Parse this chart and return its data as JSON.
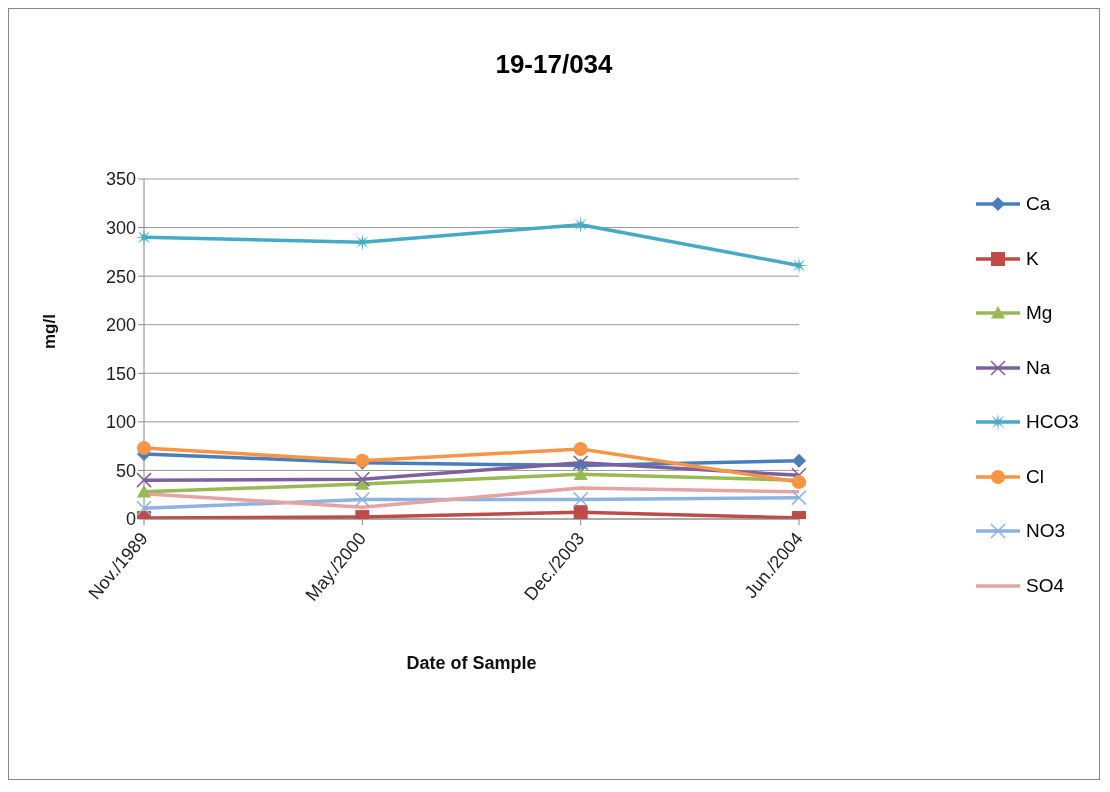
{
  "chart_data": {
    "type": "line",
    "title": "19-17/034",
    "xlabel": "Date of Sample",
    "ylabel": "mg/l",
    "categories": [
      "Nov./1989",
      "May./2000",
      "Dec./2003",
      "Jun./2004"
    ],
    "series": [
      {
        "name": "Ca",
        "color": "#4a7ebb",
        "marker": "diamond",
        "values": [
          67,
          58,
          55,
          60
        ]
      },
      {
        "name": "K",
        "color": "#be4b48",
        "marker": "square",
        "values": [
          1,
          2,
          7,
          1
        ]
      },
      {
        "name": "Mg",
        "color": "#98b954",
        "marker": "triangle",
        "values": [
          28,
          36,
          46,
          40
        ]
      },
      {
        "name": "Na",
        "color": "#7d60a0",
        "marker": "cross",
        "values": [
          40,
          41,
          58,
          45
        ]
      },
      {
        "name": "HCO3",
        "color": "#46aac5",
        "marker": "star",
        "values": [
          290,
          285,
          303,
          261
        ]
      },
      {
        "name": "Cl",
        "color": "#f69546",
        "marker": "circle",
        "values": [
          73,
          60,
          72,
          38
        ]
      },
      {
        "name": "NO3",
        "color": "#8cb3e2",
        "marker": "cross",
        "values": [
          11,
          20,
          20,
          22
        ]
      },
      {
        "name": "SO4",
        "color": "#e6a3a2",
        "marker": "none",
        "values": [
          26,
          12,
          32,
          28
        ]
      }
    ],
    "ylim": [
      0,
      350
    ],
    "yticks": [
      0,
      50,
      100,
      150,
      200,
      250,
      300,
      350
    ],
    "grid": "y",
    "legend": "right"
  }
}
